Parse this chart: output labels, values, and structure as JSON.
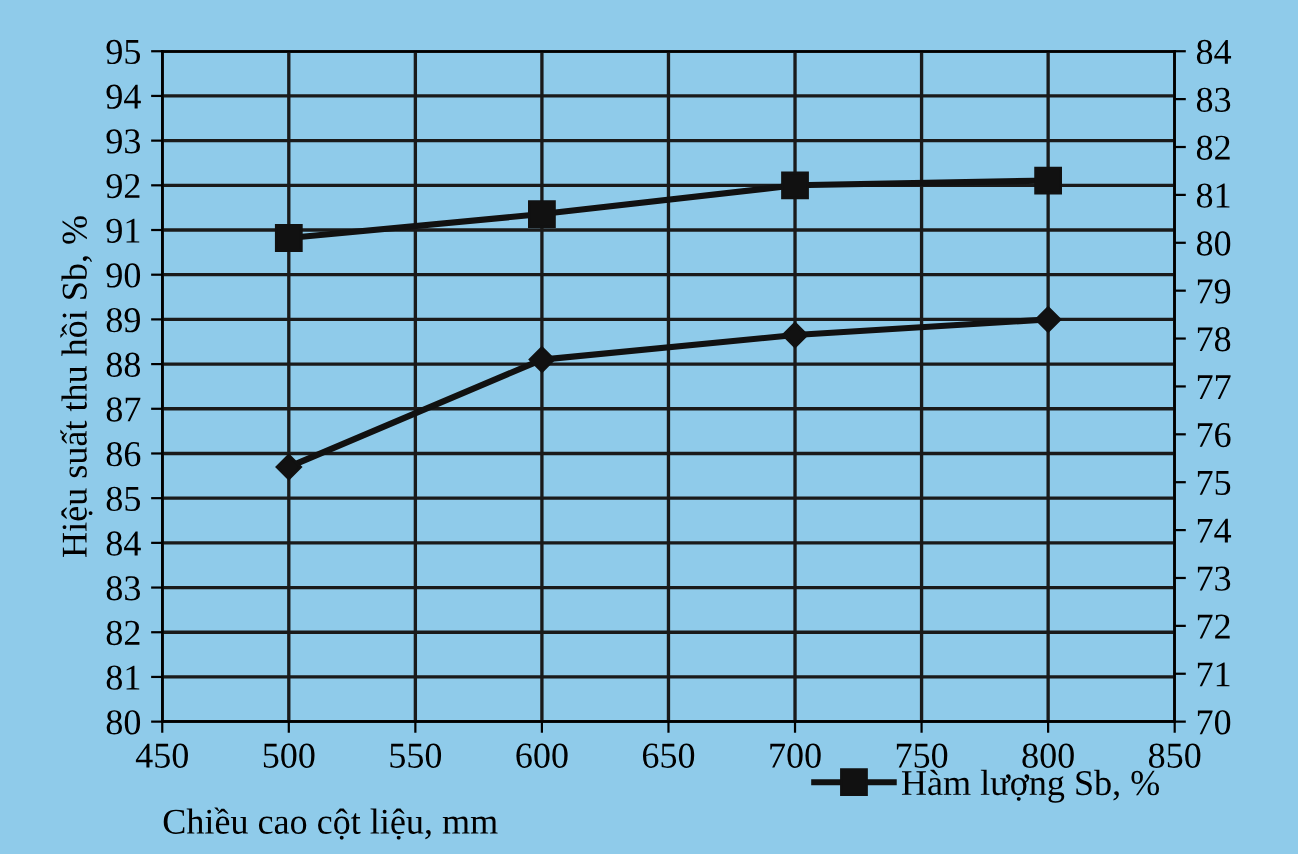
{
  "chart_data": {
    "type": "line",
    "xlabel": "Chiều cao cột liệu, mm",
    "ylabel": "Hiệu suất thu hồi Sb, %",
    "x": [
      500,
      600,
      700,
      800
    ],
    "series": [
      {
        "color": "#111111",
        "marker": "diamond",
        "values": [
          85.7,
          88.1,
          88.65,
          89.0
        ]
      },
      {
        "name": "Hàm lượng Sb, %",
        "color": "#111111",
        "marker": "square",
        "axis": "y2",
        "values": [
          80.1,
          80.6,
          81.2,
          81.3
        ]
      }
    ],
    "xlim": [
      450,
      850
    ],
    "xticks": [
      450,
      500,
      550,
      600,
      650,
      700,
      750,
      800,
      850
    ],
    "ylim": [
      80,
      95
    ],
    "yticks": [
      80,
      81,
      82,
      83,
      84,
      85,
      86,
      87,
      88,
      89,
      90,
      91,
      92,
      93,
      94,
      95
    ],
    "y2lim": [
      70,
      84
    ],
    "y2ticks": [
      70,
      71,
      72,
      73,
      74,
      75,
      76,
      77,
      78,
      79,
      80,
      81,
      82,
      83,
      84
    ],
    "grid": true,
    "legend": "bottom right",
    "line_style": "solid"
  }
}
